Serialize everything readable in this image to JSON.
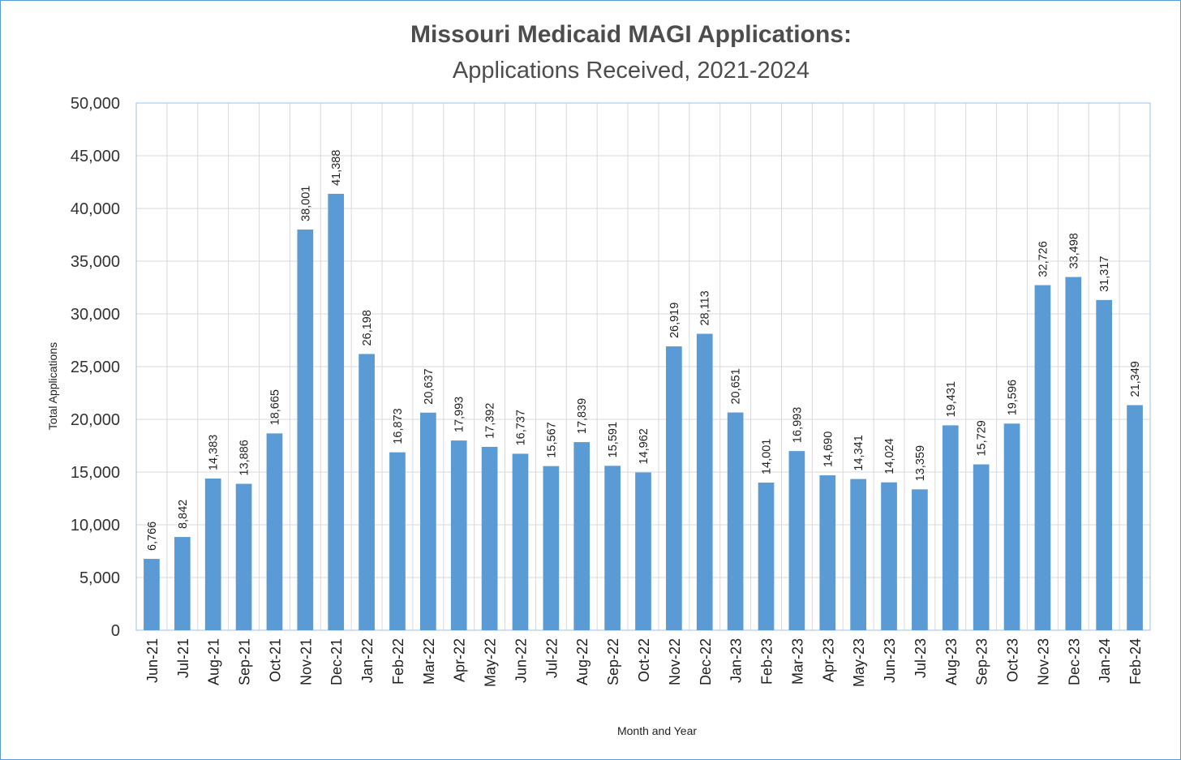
{
  "chart_data": {
    "type": "bar",
    "title": "Missouri Medicaid MAGI Applications:",
    "subtitle": "Applications Received, 2021-2024",
    "xlabel": "Month and Year",
    "ylabel": "Total Applications",
    "ylim": [
      0,
      50000
    ],
    "yticks": [
      0,
      5000,
      10000,
      15000,
      20000,
      25000,
      30000,
      35000,
      40000,
      45000,
      50000
    ],
    "ytick_labels": [
      "0",
      "5,000",
      "10,000",
      "15,000",
      "20,000",
      "25,000",
      "30,000",
      "35,000",
      "40,000",
      "45,000",
      "50,000"
    ],
    "grid": true,
    "legend": "none",
    "bar_color": "#5b9bd5",
    "categories": [
      "Jun-21",
      "Jul-21",
      "Aug-21",
      "Sep-21",
      "Oct-21",
      "Nov-21",
      "Dec-21",
      "Jan-22",
      "Feb-22",
      "Mar-22",
      "Apr-22",
      "May-22",
      "Jun-22",
      "Jul-22",
      "Aug-22",
      "Sep-22",
      "Oct-22",
      "Nov-22",
      "Dec-22",
      "Jan-23",
      "Feb-23",
      "Mar-23",
      "Apr-23",
      "May-23",
      "Jun-23",
      "Jul-23",
      "Aug-23",
      "Sep-23",
      "Oct-23",
      "Nov-23",
      "Dec-23",
      "Jan-24",
      "Feb-24"
    ],
    "values": [
      6766,
      8842,
      14383,
      13886,
      18665,
      38001,
      41388,
      26198,
      16873,
      20637,
      17993,
      17392,
      16737,
      15567,
      17839,
      15591,
      14962,
      26919,
      28113,
      20651,
      14001,
      16993,
      14690,
      14341,
      14024,
      13359,
      19431,
      15729,
      19596,
      32726,
      33498,
      31317,
      21349
    ],
    "value_labels": [
      "6,766",
      "8,842",
      "14,383",
      "13,886",
      "18,665",
      "38,001",
      "41,388",
      "26,198",
      "16,873",
      "20,637",
      "17,993",
      "17,392",
      "16,737",
      "15,567",
      "17,839",
      "15,591",
      "14,962",
      "26,919",
      "28,113",
      "20,651",
      "14,001",
      "16,993",
      "14,690",
      "14,341",
      "14,024",
      "13,359",
      "19,431",
      "15,729",
      "19,596",
      "32,726",
      "33,498",
      "31,317",
      "21,349"
    ]
  }
}
